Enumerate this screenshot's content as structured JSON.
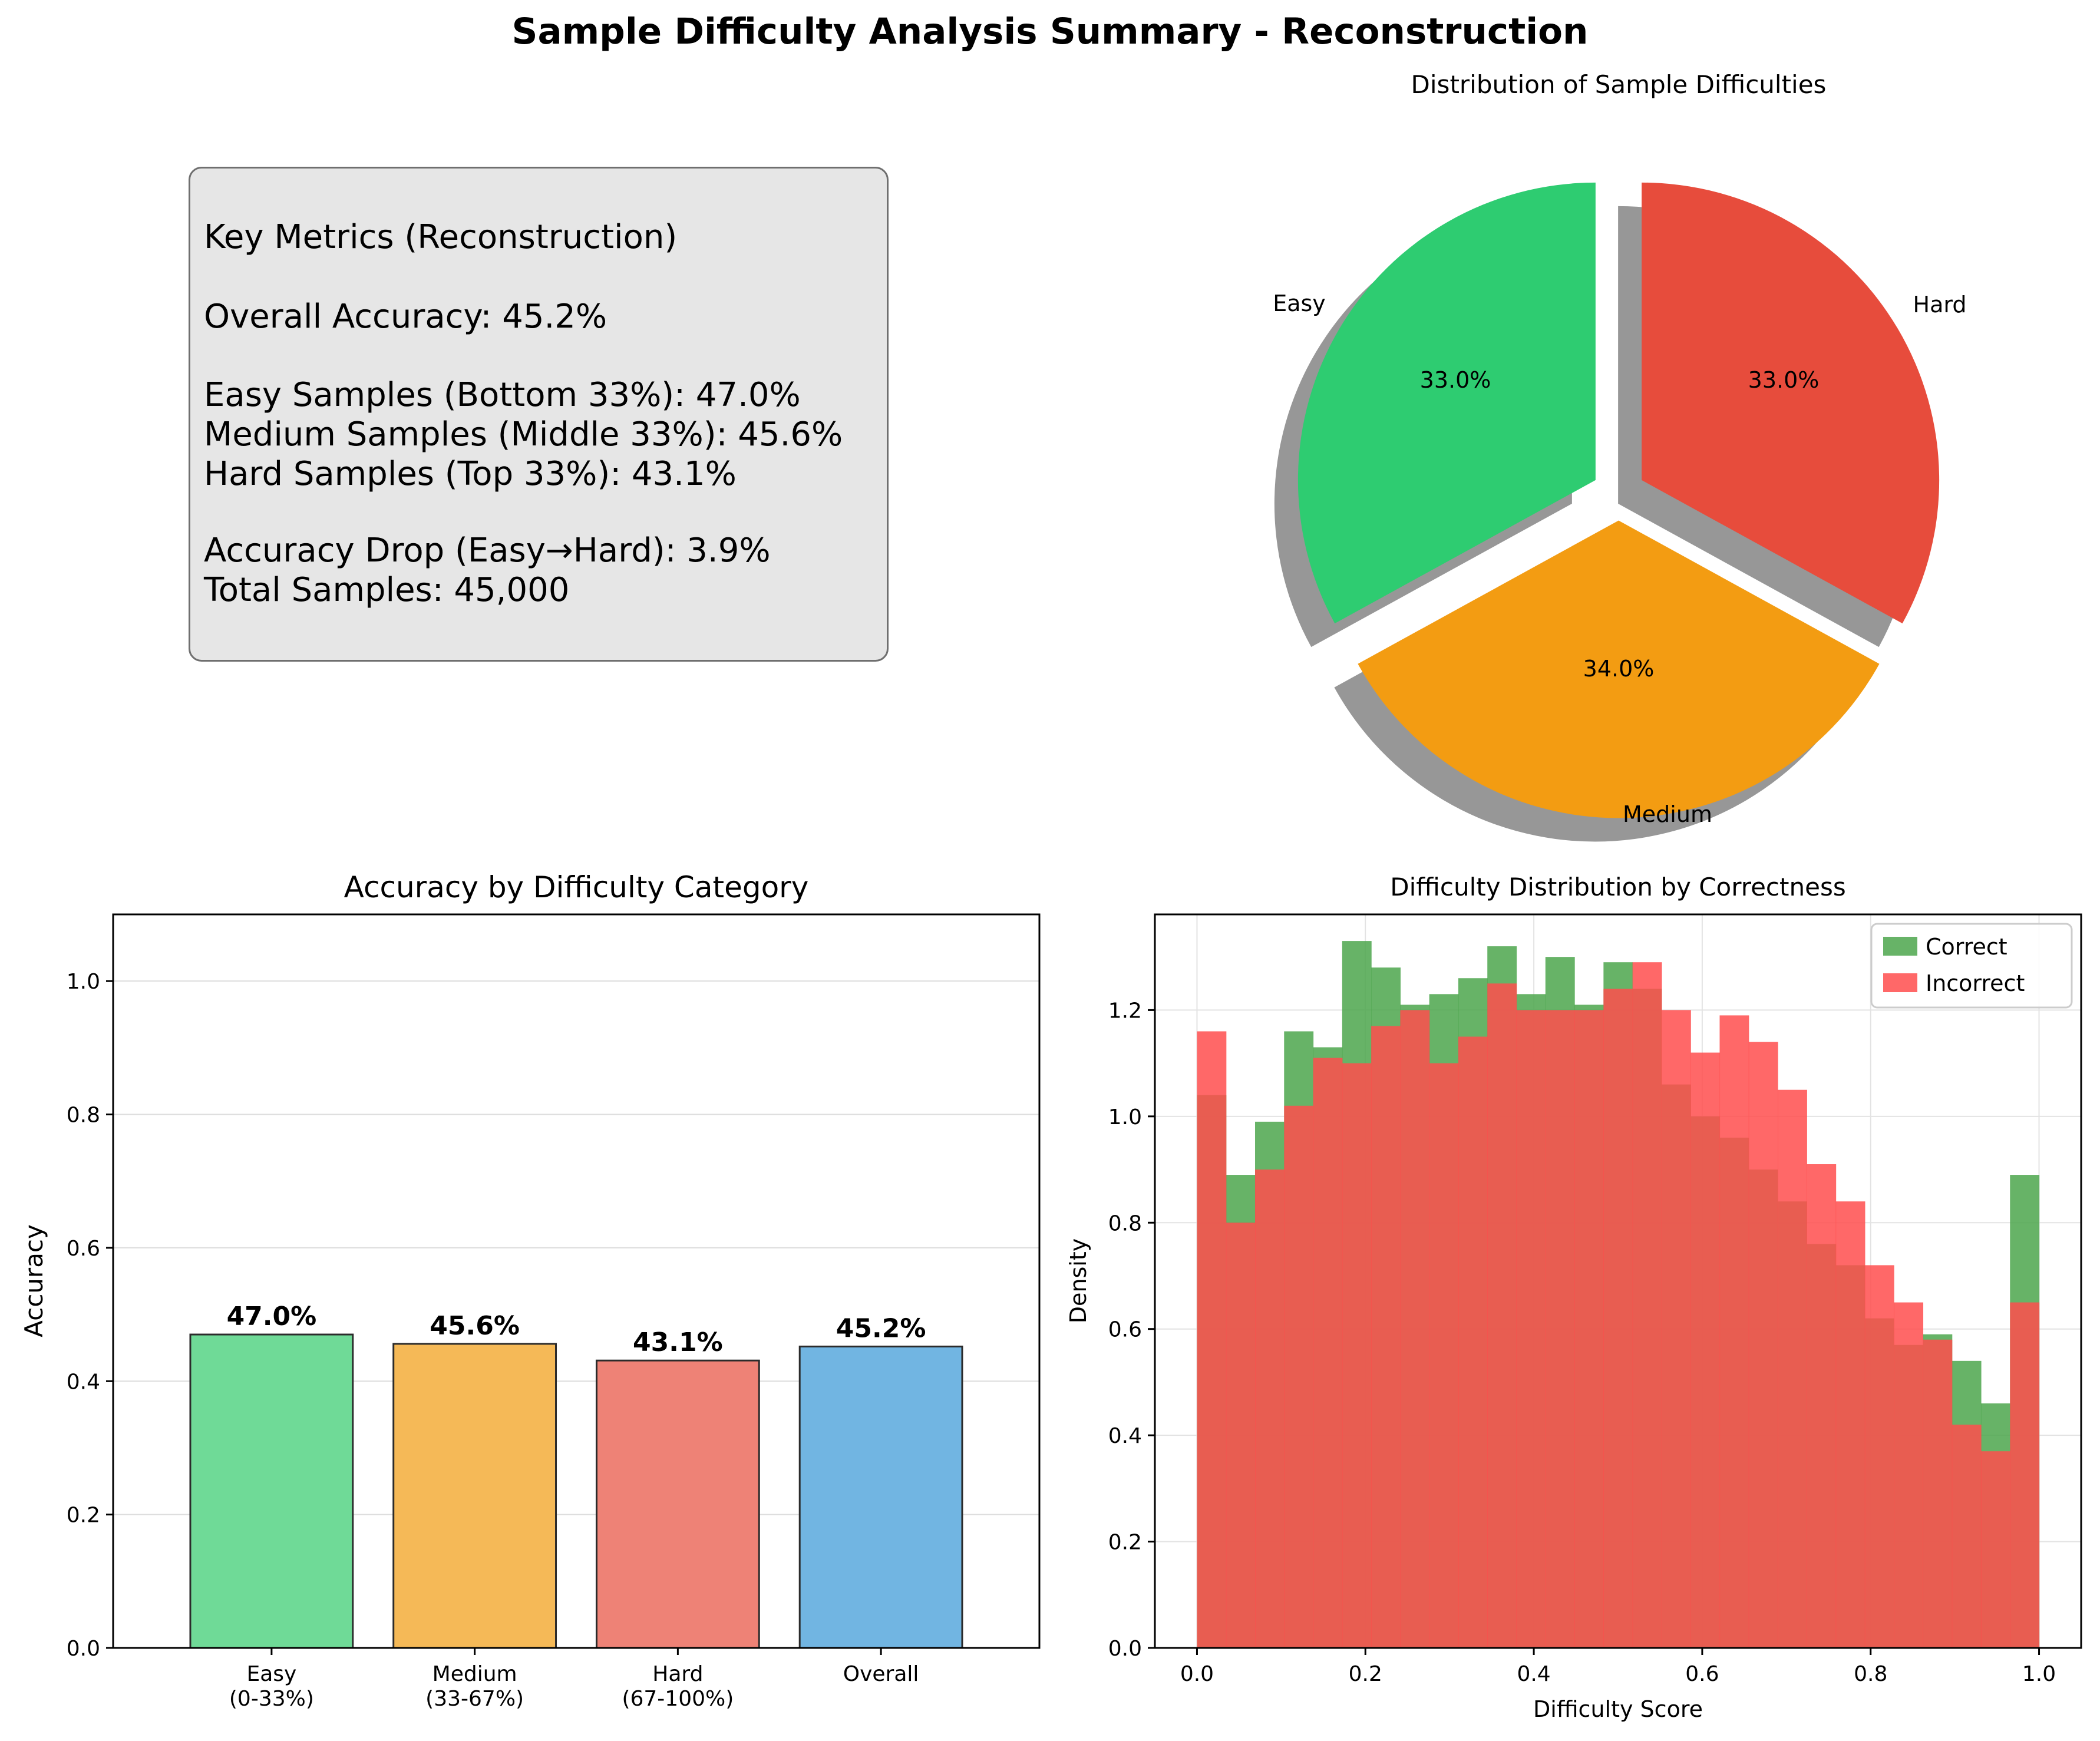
{
  "figure": {
    "title": "Sample Difficulty Analysis Summary - Reconstruction"
  },
  "metrics_panel": {
    "lines": [
      "Key Metrics (Reconstruction)",
      "Overall Accuracy: 45.2%",
      "Easy Samples (Bottom 33%): 47.0%",
      "Medium Samples (Middle 33%): 45.6%",
      "Hard Samples (Top 33%): 43.1%",
      "Accuracy Drop (Easy→Hard): 3.9%",
      "Total Samples: 45,000"
    ]
  },
  "chart_data": [
    {
      "type": "pie",
      "title": "Distribution of Sample Difficulties",
      "labels": [
        "Easy",
        "Medium",
        "Hard"
      ],
      "values": [
        33.0,
        34.0,
        33.0
      ],
      "autopct_labels": [
        "33.0%",
        "34.0%",
        "33.0%"
      ],
      "colors": [
        "#2ecc71",
        "#f39c12",
        "#e74c3c"
      ],
      "exploded": true,
      "shadow": true,
      "start_angle_deg": 90
    },
    {
      "type": "bar",
      "title": "Accuracy by Difficulty Category",
      "categories": [
        [
          "Easy",
          "(0-33%)"
        ],
        [
          "Medium",
          "(33-67%)"
        ],
        [
          "Hard",
          "(67-100%)"
        ],
        [
          "Overall"
        ]
      ],
      "values": [
        0.47,
        0.456,
        0.431,
        0.452
      ],
      "value_labels": [
        "47.0%",
        "45.6%",
        "43.1%",
        "45.2%"
      ],
      "colors": [
        "#6fda97",
        "#f5b957",
        "#ee8276",
        "#71b5e2"
      ],
      "ylabel": "Accuracy",
      "xlabel": "",
      "ylim": [
        0,
        1.1
      ],
      "yticks": [
        0.0,
        0.2,
        0.4,
        0.6,
        0.8,
        1.0
      ],
      "ytick_labels": [
        "0.0",
        "0.2",
        "0.4",
        "0.6",
        "0.8",
        "1.0"
      ],
      "grid": "y"
    },
    {
      "type": "bar",
      "subtype": "histogram",
      "title": "Difficulty Distribution by Correctness",
      "xlabel": "Difficulty Score",
      "ylabel": "Density",
      "xlim": [
        -0.05,
        1.05
      ],
      "ylim": [
        0,
        1.38
      ],
      "xticks": [
        0.0,
        0.2,
        0.4,
        0.6,
        0.8,
        1.0
      ],
      "xtick_labels": [
        "0.0",
        "0.2",
        "0.4",
        "0.6",
        "0.8",
        "1.0"
      ],
      "yticks": [
        0.0,
        0.2,
        0.4,
        0.6,
        0.8,
        1.0,
        1.2
      ],
      "ytick_labels": [
        "0.0",
        "0.2",
        "0.4",
        "0.6",
        "0.8",
        "1.0",
        "1.2"
      ],
      "grid": true,
      "legend": "top-right",
      "bin_edges_start": 0.0,
      "bin_width": 0.0333,
      "series": [
        {
          "name": "Correct",
          "color": "#4ca64c",
          "values": [
            1.04,
            0.89,
            0.99,
            1.16,
            1.13,
            1.33,
            1.28,
            1.21,
            1.23,
            1.26,
            1.32,
            1.23,
            1.3,
            1.21,
            1.29,
            1.24,
            1.06,
            1.0,
            0.96,
            0.9,
            0.84,
            0.76,
            0.72,
            0.62,
            0.57,
            0.59,
            0.54,
            0.46,
            0.89
          ]
        },
        {
          "name": "Incorrect",
          "color": "#ff4d4d",
          "values": [
            1.16,
            0.8,
            0.9,
            1.02,
            1.11,
            1.1,
            1.17,
            1.2,
            1.1,
            1.15,
            1.25,
            1.2,
            1.2,
            1.2,
            1.24,
            1.29,
            1.2,
            1.12,
            1.19,
            1.14,
            1.05,
            0.91,
            0.84,
            0.72,
            0.65,
            0.58,
            0.42,
            0.37,
            0.65
          ]
        }
      ]
    }
  ]
}
